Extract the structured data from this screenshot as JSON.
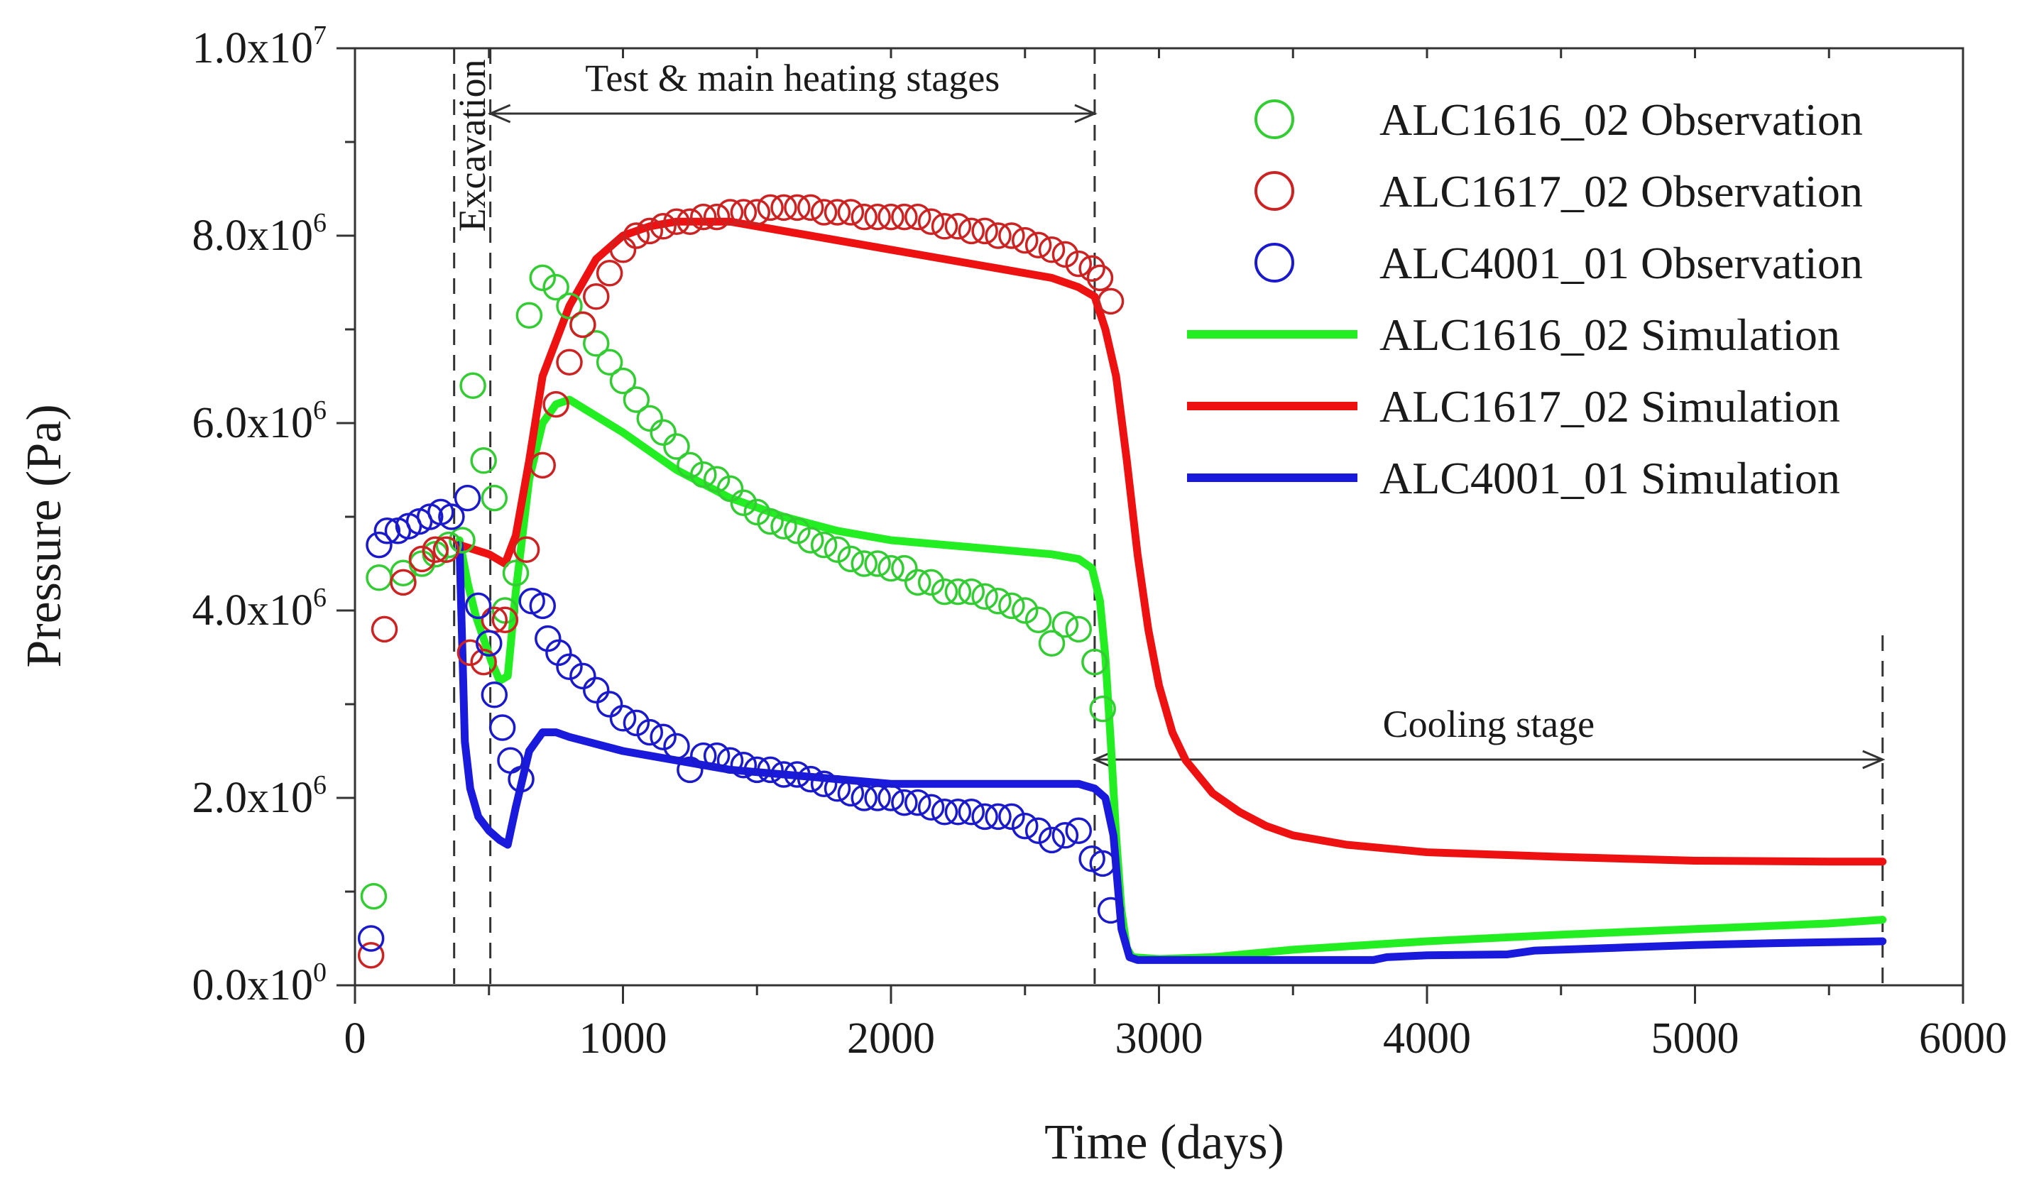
{
  "chart_data": {
    "type": "scatter+line",
    "xlabel": "Time (days)",
    "ylabel": "Pressure (Pa)",
    "xlim": [
      0,
      6000
    ],
    "ylim": [
      0,
      10000000
    ],
    "x_ticks": [
      {
        "value": 0,
        "label": "0"
      },
      {
        "value": 1000,
        "label": "1000"
      },
      {
        "value": 2000,
        "label": "2000"
      },
      {
        "value": 3000,
        "label": "3000"
      },
      {
        "value": 4000,
        "label": "4000"
      },
      {
        "value": 5000,
        "label": "5000"
      },
      {
        "value": 6000,
        "label": "6000"
      }
    ],
    "y_ticks": [
      {
        "value": 0,
        "mantissa": "0.0x10",
        "exp": "0"
      },
      {
        "value": 2000000,
        "mantissa": "2.0x10",
        "exp": "6"
      },
      {
        "value": 4000000,
        "mantissa": "4.0x10",
        "exp": "6"
      },
      {
        "value": 6000000,
        "mantissa": "6.0x10",
        "exp": "6"
      },
      {
        "value": 8000000,
        "mantissa": "8.0x10",
        "exp": "6"
      },
      {
        "value": 10000000,
        "mantissa": "1.0x10",
        "exp": "7"
      }
    ],
    "grid": false,
    "legend_position": "top-right",
    "annotations": {
      "excavation": {
        "text": "Excavation",
        "x_start": 370,
        "x_end": 505
      },
      "heating": {
        "text": "Test & main heating stages",
        "x_start": 505,
        "x_end": 2760
      },
      "cooling": {
        "text": "Cooling stage",
        "x_start": 2760,
        "x_end": 5700
      }
    },
    "series": [
      {
        "name": "ALC1616_02 Observation",
        "kind": "observation",
        "color": "#33cc33",
        "x": [
          70,
          90,
          180,
          250,
          300,
          350,
          400,
          440,
          480,
          520,
          560,
          600,
          650,
          700,
          750,
          800,
          850,
          900,
          950,
          1000,
          1050,
          1100,
          1150,
          1200,
          1250,
          1300,
          1350,
          1400,
          1450,
          1500,
          1550,
          1600,
          1650,
          1700,
          1750,
          1800,
          1850,
          1900,
          1950,
          2000,
          2050,
          2100,
          2150,
          2200,
          2250,
          2300,
          2350,
          2400,
          2450,
          2500,
          2550,
          2600,
          2650,
          2700,
          2760,
          2790
        ],
        "y": [
          950000,
          4350000,
          4400000,
          4500000,
          4600000,
          4700000,
          4750000,
          6400000,
          5600000,
          5200000,
          4000000,
          4400000,
          7150000,
          7550000,
          7450000,
          7250000,
          7050000,
          6850000,
          6650000,
          6450000,
          6250000,
          6050000,
          5900000,
          5750000,
          5550000,
          5450000,
          5400000,
          5300000,
          5150000,
          5050000,
          4950000,
          4900000,
          4850000,
          4750000,
          4700000,
          4650000,
          4550000,
          4500000,
          4500000,
          4450000,
          4450000,
          4300000,
          4300000,
          4200000,
          4200000,
          4200000,
          4150000,
          4100000,
          4050000,
          4000000,
          3900000,
          3650000,
          3850000,
          3800000,
          3450000,
          2950000
        ]
      },
      {
        "name": "ALC1617_02 Observation",
        "kind": "observation",
        "color": "#cc2222",
        "x": [
          60,
          110,
          180,
          250,
          300,
          340,
          430,
          480,
          520,
          560,
          640,
          700,
          750,
          800,
          850,
          900,
          950,
          1000,
          1050,
          1100,
          1150,
          1200,
          1250,
          1300,
          1350,
          1400,
          1450,
          1500,
          1550,
          1600,
          1650,
          1700,
          1750,
          1800,
          1850,
          1900,
          1950,
          2000,
          2050,
          2100,
          2150,
          2200,
          2250,
          2300,
          2350,
          2400,
          2450,
          2500,
          2550,
          2600,
          2650,
          2700,
          2750,
          2780,
          2820
        ],
        "y": [
          320000,
          3800000,
          4300000,
          4550000,
          4650000,
          4650000,
          3550000,
          3450000,
          3900000,
          3900000,
          4650000,
          5550000,
          6200000,
          6650000,
          7050000,
          7350000,
          7600000,
          7850000,
          8000000,
          8050000,
          8100000,
          8150000,
          8150000,
          8200000,
          8200000,
          8250000,
          8250000,
          8250000,
          8300000,
          8300000,
          8300000,
          8300000,
          8250000,
          8250000,
          8250000,
          8200000,
          8200000,
          8200000,
          8200000,
          8200000,
          8150000,
          8100000,
          8100000,
          8050000,
          8050000,
          8000000,
          8000000,
          7950000,
          7900000,
          7850000,
          7800000,
          7700000,
          7650000,
          7550000,
          7300000
        ]
      },
      {
        "name": "ALC4001_01 Observation",
        "kind": "observation",
        "color": "#1a1acc",
        "x": [
          60,
          90,
          120,
          160,
          200,
          240,
          280,
          320,
          360,
          420,
          460,
          500,
          520,
          550,
          580,
          620,
          660,
          700,
          720,
          760,
          800,
          850,
          900,
          950,
          1000,
          1050,
          1100,
          1150,
          1200,
          1250,
          1300,
          1350,
          1400,
          1450,
          1500,
          1550,
          1600,
          1650,
          1700,
          1750,
          1800,
          1850,
          1900,
          1950,
          2000,
          2050,
          2100,
          2150,
          2200,
          2250,
          2300,
          2350,
          2400,
          2450,
          2500,
          2550,
          2600,
          2650,
          2700,
          2750,
          2790,
          2820
        ],
        "y": [
          500000,
          4700000,
          4850000,
          4850000,
          4900000,
          4950000,
          5000000,
          5050000,
          5000000,
          5200000,
          4050000,
          3650000,
          3100000,
          2750000,
          2400000,
          2200000,
          4100000,
          4050000,
          3700000,
          3550000,
          3400000,
          3300000,
          3150000,
          3000000,
          2850000,
          2800000,
          2700000,
          2650000,
          2550000,
          2300000,
          2450000,
          2450000,
          2400000,
          2350000,
          2300000,
          2300000,
          2250000,
          2250000,
          2200000,
          2150000,
          2100000,
          2050000,
          2000000,
          2000000,
          2000000,
          1950000,
          1950000,
          1900000,
          1850000,
          1850000,
          1850000,
          1800000,
          1800000,
          1800000,
          1700000,
          1650000,
          1550000,
          1600000,
          1650000,
          1350000,
          1300000,
          800000
        ]
      },
      {
        "name": "ALC1616_02 Simulation",
        "kind": "simulation",
        "color": "#22ee22",
        "x": [
          390,
          420,
          450,
          480,
          510,
          540,
          570,
          600,
          650,
          700,
          750,
          800,
          1000,
          1200,
          1400,
          1600,
          1800,
          2000,
          2200,
          2400,
          2600,
          2700,
          2750,
          2780,
          2800,
          2820,
          2840,
          2860,
          2880,
          2900,
          3000,
          3200,
          3500,
          4000,
          4500,
          5000,
          5500,
          5700
        ],
        "y": [
          4750000,
          4300000,
          3950000,
          3700000,
          3450000,
          3250000,
          3300000,
          4200000,
          5400000,
          6000000,
          6200000,
          6250000,
          5900000,
          5500000,
          5200000,
          5000000,
          4850000,
          4750000,
          4700000,
          4650000,
          4600000,
          4550000,
          4450000,
          4100000,
          3500000,
          2600000,
          1600000,
          800000,
          400000,
          300000,
          280000,
          300000,
          380000,
          470000,
          540000,
          600000,
          660000,
          700000
        ]
      },
      {
        "name": "ALC1617_02 Simulation",
        "kind": "simulation",
        "color": "#ee1111",
        "x": [
          390,
          500,
          560,
          600,
          650,
          700,
          800,
          900,
          1000,
          1100,
          1200,
          1300,
          1400,
          1600,
          1800,
          2000,
          2200,
          2400,
          2600,
          2700,
          2760,
          2800,
          2840,
          2880,
          2920,
          2960,
          3000,
          3050,
          3100,
          3200,
          3300,
          3400,
          3500,
          3700,
          4000,
          4500,
          5000,
          5500,
          5700
        ],
        "y": [
          4700000,
          4600000,
          4500000,
          4800000,
          5600000,
          6500000,
          7250000,
          7750000,
          8000000,
          8100000,
          8150000,
          8150000,
          8150000,
          8050000,
          7950000,
          7850000,
          7750000,
          7650000,
          7550000,
          7450000,
          7350000,
          7000000,
          6500000,
          5600000,
          4600000,
          3800000,
          3200000,
          2700000,
          2400000,
          2050000,
          1850000,
          1700000,
          1600000,
          1500000,
          1420000,
          1370000,
          1330000,
          1320000,
          1320000
        ]
      },
      {
        "name": "ALC4001_01 Simulation",
        "kind": "simulation",
        "color": "#1a1add",
        "x": [
          390,
          410,
          430,
          460,
          500,
          540,
          570,
          600,
          650,
          700,
          750,
          800,
          1000,
          1200,
          1400,
          1600,
          1800,
          2000,
          2200,
          2400,
          2600,
          2700,
          2760,
          2800,
          2830,
          2860,
          2890,
          2920,
          3000,
          3200,
          3500,
          3800,
          3850,
          4000,
          4300,
          4400,
          4700,
          5000,
          5300,
          5700
        ],
        "y": [
          4700000,
          2600000,
          2100000,
          1800000,
          1650000,
          1550000,
          1500000,
          1900000,
          2500000,
          2700000,
          2700000,
          2650000,
          2500000,
          2400000,
          2300000,
          2250000,
          2200000,
          2150000,
          2150000,
          2150000,
          2150000,
          2150000,
          2100000,
          2000000,
          1600000,
          600000,
          300000,
          270000,
          270000,
          270000,
          270000,
          270000,
          300000,
          320000,
          330000,
          370000,
          400000,
          430000,
          450000,
          470000
        ]
      }
    ]
  }
}
